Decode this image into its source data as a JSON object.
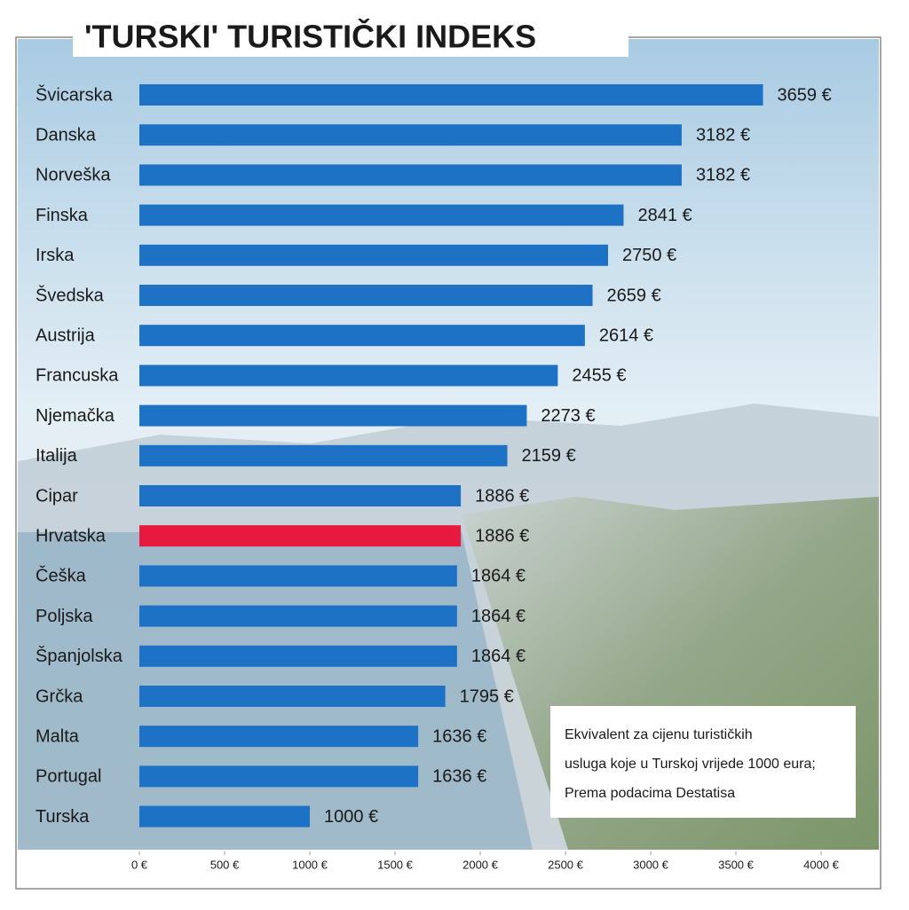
{
  "chart_data": {
    "type": "hbar",
    "title": "'TURSKI' TURISTIČKI INDEKS",
    "categories": [
      "Švicarska",
      "Danska",
      "Norveška",
      "Finska",
      "Irska",
      "Švedska",
      "Austrija",
      "Francuska",
      "Njemačka",
      "Italija",
      "Cipar",
      "Hrvatska",
      "Češka",
      "Poljska",
      "Španjolska",
      "Grčka",
      "Malta",
      "Portugal",
      "Turska"
    ],
    "values": [
      3659,
      3182,
      3182,
      2841,
      2750,
      2659,
      2614,
      2455,
      2273,
      2159,
      1886,
      1886,
      1864,
      1864,
      1864,
      1795,
      1636,
      1636,
      1000
    ],
    "value_labels": [
      "3659 €",
      "3182 €",
      "3182 €",
      "2841 €",
      "2750 €",
      "2659 €",
      "2614 €",
      "2455 €",
      "2273 €",
      "2159 €",
      "1886 €",
      "1886 €",
      "1864 €",
      "1864 €",
      "1864 €",
      "1795 €",
      "1636 €",
      "1636 €",
      "1000 €"
    ],
    "colors": [
      "#1d72c6",
      "#1d72c6",
      "#1d72c6",
      "#1d72c6",
      "#1d72c6",
      "#1d72c6",
      "#1d72c6",
      "#1d72c6",
      "#1d72c6",
      "#1d72c6",
      "#1d72c6",
      "#e8193f",
      "#1d72c6",
      "#1d72c6",
      "#1d72c6",
      "#1d72c6",
      "#1d72c6",
      "#1d72c6",
      "#1d72c6"
    ],
    "xlim": [
      0,
      4000
    ],
    "xticks": [
      {
        "value": 0,
        "label": "0 €"
      },
      {
        "value": 500,
        "label": "500 €"
      },
      {
        "value": 1000,
        "label": "1000 €"
      },
      {
        "value": 1500,
        "label": "1500 €"
      },
      {
        "value": 2000,
        "label": "2000 €"
      },
      {
        "value": 2500,
        "label": "2500 €"
      },
      {
        "value": 3000,
        "label": "3000 €"
      },
      {
        "value": 3500,
        "label": "3500 €"
      },
      {
        "value": 4000,
        "label": "4000 €"
      }
    ],
    "annotation": [
      "Ekvivalent za cijenu turističkih",
      "usluga koje u Turskoj vrijede 1000 eura;",
      "Prema podacima Destatisa"
    ]
  }
}
